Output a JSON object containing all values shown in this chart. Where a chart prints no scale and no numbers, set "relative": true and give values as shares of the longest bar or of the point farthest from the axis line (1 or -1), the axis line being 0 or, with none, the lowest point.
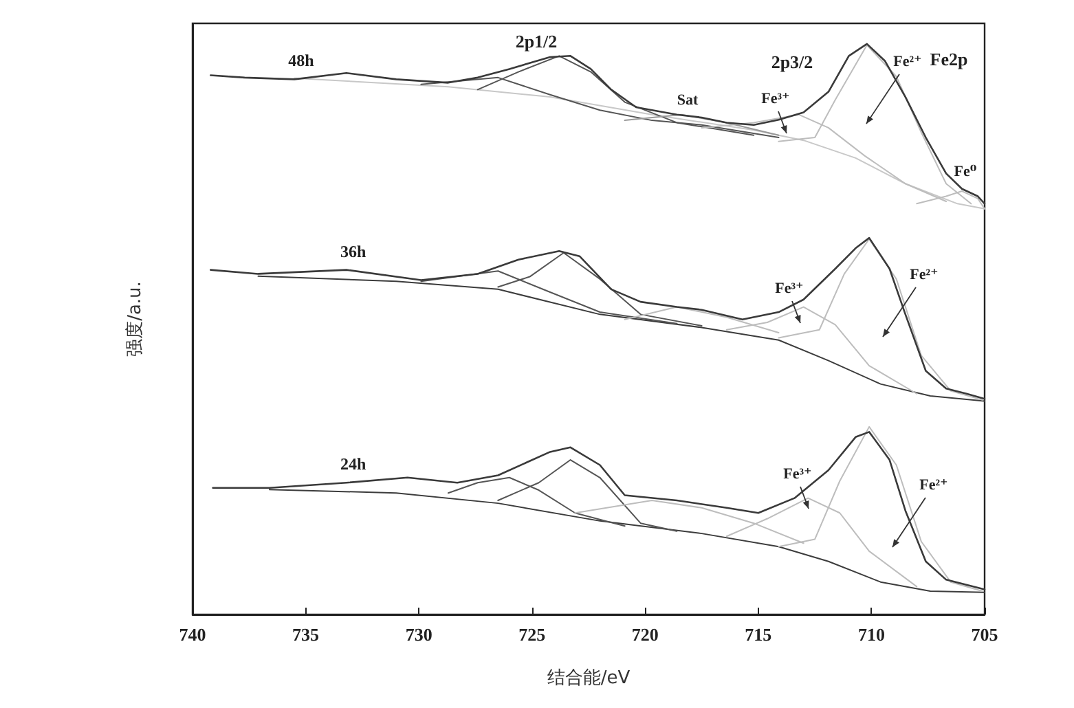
{
  "chart_data": {
    "type": "line",
    "relative": true,
    "xlabel": "结合能/eV",
    "ylabel": "强度/a.u.",
    "xlim": [
      740,
      705
    ],
    "xticks": [
      740,
      735,
      730,
      725,
      720,
      715,
      710,
      705
    ],
    "grid": false,
    "legend": false,
    "tick_labels": "x",
    "marker": "none",
    "line_style": "solid",
    "series": [
      {
        "name": "48h",
        "color": "#3a3a3a",
        "x": [
          739.2,
          737.7,
          735.5,
          733.2,
          731.0,
          728.7,
          727.4,
          726.0,
          724.2,
          723.3,
          722.4,
          721.5,
          720.4,
          718.6,
          717.5,
          716.4,
          715.2,
          714.1,
          713.0,
          711.9,
          711.0,
          710.2,
          709.4,
          708.5,
          707.6,
          706.7,
          706.0,
          705.3,
          705.0
        ],
        "values": [
          0.945,
          0.941,
          0.938,
          0.949,
          0.938,
          0.932,
          0.941,
          0.956,
          0.977,
          0.979,
          0.956,
          0.92,
          0.889,
          0.876,
          0.871,
          0.862,
          0.858,
          0.867,
          0.88,
          0.916,
          0.979,
          1.0,
          0.97,
          0.907,
          0.836,
          0.773,
          0.746,
          0.733,
          0.72
        ]
      },
      {
        "color": "#c8c8c8",
        "x": [
          735.5,
          728.7,
          724.2,
          719.7,
          715.2,
          713.0,
          710.7,
          708.5,
          706.2,
          705.0
        ],
        "values": [
          0.94,
          0.925,
          0.907,
          0.876,
          0.849,
          0.831,
          0.8,
          0.755,
          0.72,
          0.711
        ]
      },
      {
        "color": "#555555",
        "x": [
          727.4,
          725.6,
          723.8,
          722.4,
          720.9,
          718.6,
          715.2
        ],
        "values": [
          0.92,
          0.951,
          0.979,
          0.951,
          0.898,
          0.862,
          0.84
        ]
      },
      {
        "color": "#555555",
        "x": [
          729.9,
          726.5,
          724.2,
          722.0,
          719.7,
          717.5,
          714.1
        ],
        "values": [
          0.929,
          0.941,
          0.911,
          0.884,
          0.866,
          0.858,
          0.836
        ]
      },
      {
        "color": "#999999",
        "x": [
          720.9,
          718.4,
          716.4,
          714.1
        ],
        "values": [
          0.866,
          0.876,
          0.862,
          0.84
        ]
      },
      {
        "color": "#bdbdbd",
        "x": [
          717.5,
          715.2,
          713.2,
          711.9,
          710.3,
          708.5,
          706.7
        ],
        "values": [
          0.853,
          0.862,
          0.876,
          0.853,
          0.804,
          0.755,
          0.724
        ]
      },
      {
        "color": "#bdbdbd",
        "x": [
          714.1,
          712.5,
          711.6,
          710.2,
          708.9,
          707.8,
          706.7,
          705.6
        ],
        "values": [
          0.829,
          0.836,
          0.902,
          0.998,
          0.943,
          0.845,
          0.755,
          0.72
        ]
      },
      {
        "color": "#bdbdbd",
        "x": [
          708.0,
          706.7,
          706.0,
          705.3,
          705.0
        ],
        "values": [
          0.72,
          0.733,
          0.742,
          0.729,
          0.711
        ]
      },
      {
        "name": "36h",
        "color": "#3a3a3a",
        "x": [
          739.2,
          737.1,
          733.2,
          729.9,
          727.4,
          725.6,
          723.8,
          722.9,
          721.5,
          720.2,
          718.6,
          717.5,
          715.7,
          714.1,
          713.0,
          711.6,
          710.7,
          710.1,
          709.2,
          708.5,
          707.6,
          706.7,
          705.8,
          705.0
        ],
        "values": [
          0.604,
          0.597,
          0.604,
          0.586,
          0.597,
          0.622,
          0.637,
          0.628,
          0.57,
          0.548,
          0.539,
          0.534,
          0.517,
          0.53,
          0.552,
          0.606,
          0.642,
          0.66,
          0.606,
          0.526,
          0.427,
          0.396,
          0.387,
          0.378
        ]
      },
      {
        "color": "#3c3c3c",
        "x": [
          737.1,
          731.0,
          726.5,
          722.0,
          717.5,
          714.1,
          711.9,
          709.6,
          707.4,
          705.0
        ],
        "values": [
          0.593,
          0.584,
          0.57,
          0.526,
          0.503,
          0.481,
          0.445,
          0.404,
          0.383,
          0.374
        ]
      },
      {
        "color": "#555555",
        "x": [
          726.5,
          725.1,
          723.6,
          722.0,
          720.2,
          717.5
        ],
        "values": [
          0.574,
          0.592,
          0.634,
          0.588,
          0.526,
          0.506
        ]
      },
      {
        "color": "#555555",
        "x": [
          729.9,
          726.5,
          724.2,
          722.0,
          718.6
        ],
        "values": [
          0.584,
          0.602,
          0.565,
          0.53,
          0.51
        ]
      },
      {
        "color": "#bdbdbd",
        "x": [
          720.9,
          718.6,
          716.4,
          714.1
        ],
        "values": [
          0.517,
          0.539,
          0.521,
          0.494
        ]
      },
      {
        "color": "#bdbdbd",
        "x": [
          716.4,
          714.6,
          713.0,
          711.6,
          710.1,
          708.0
        ],
        "values": [
          0.499,
          0.512,
          0.539,
          0.508,
          0.436,
          0.387
        ]
      },
      {
        "color": "#bdbdbd",
        "x": [
          714.1,
          712.3,
          711.2,
          710.1,
          708.9,
          707.8,
          706.5,
          705.1
        ],
        "values": [
          0.485,
          0.499,
          0.597,
          0.658,
          0.588,
          0.454,
          0.392,
          0.376
        ]
      },
      {
        "name": "24h",
        "color": "#3a3a3a",
        "x": [
          739.1,
          736.6,
          733.2,
          730.5,
          728.3,
          726.5,
          724.2,
          723.3,
          722.0,
          720.9,
          718.6,
          716.4,
          715.0,
          713.4,
          711.9,
          710.7,
          710.1,
          709.2,
          708.5,
          707.6,
          706.7,
          705.0
        ],
        "values": [
          0.222,
          0.222,
          0.231,
          0.24,
          0.231,
          0.244,
          0.285,
          0.293,
          0.262,
          0.209,
          0.2,
          0.187,
          0.178,
          0.204,
          0.253,
          0.311,
          0.32,
          0.271,
          0.182,
          0.093,
          0.061,
          0.044
        ]
      },
      {
        "color": "#3c3c3c",
        "x": [
          736.6,
          731.0,
          726.5,
          722.0,
          717.5,
          714.1,
          711.9,
          709.6,
          707.4,
          705.0
        ],
        "values": [
          0.219,
          0.213,
          0.195,
          0.164,
          0.142,
          0.119,
          0.093,
          0.057,
          0.041,
          0.039
        ]
      },
      {
        "color": "#555555",
        "x": [
          726.5,
          724.7,
          723.3,
          722.0,
          720.2,
          718.6
        ],
        "values": [
          0.2,
          0.231,
          0.271,
          0.24,
          0.16,
          0.146
        ]
      },
      {
        "color": "#555555",
        "x": [
          728.7,
          727.4,
          726.0,
          724.7,
          723.1,
          720.9
        ],
        "values": [
          0.213,
          0.231,
          0.24,
          0.218,
          0.178,
          0.155
        ]
      },
      {
        "color": "#bdbdbd",
        "x": [
          723.1,
          719.7,
          717.5,
          715.2,
          713.0
        ],
        "values": [
          0.178,
          0.2,
          0.187,
          0.16,
          0.125
        ]
      },
      {
        "color": "#bdbdbd",
        "x": [
          716.4,
          714.6,
          712.8,
          711.4,
          710.1,
          708.0
        ],
        "values": [
          0.137,
          0.168,
          0.204,
          0.178,
          0.111,
          0.049
        ]
      },
      {
        "color": "#bdbdbd",
        "x": [
          714.1,
          712.5,
          711.4,
          710.1,
          708.9,
          707.8,
          706.5,
          705.1
        ],
        "values": [
          0.119,
          0.132,
          0.234,
          0.329,
          0.262,
          0.128,
          0.057,
          0.041
        ]
      }
    ],
    "annotations": [
      "2p1/2",
      "2p3/2",
      "Fe2p",
      "Sat",
      "Fe⁰",
      "Fe²⁺",
      "Fe³⁺",
      "Fe²⁺",
      "Fe³⁺",
      "Fe²⁺",
      "Fe³⁺"
    ]
  }
}
